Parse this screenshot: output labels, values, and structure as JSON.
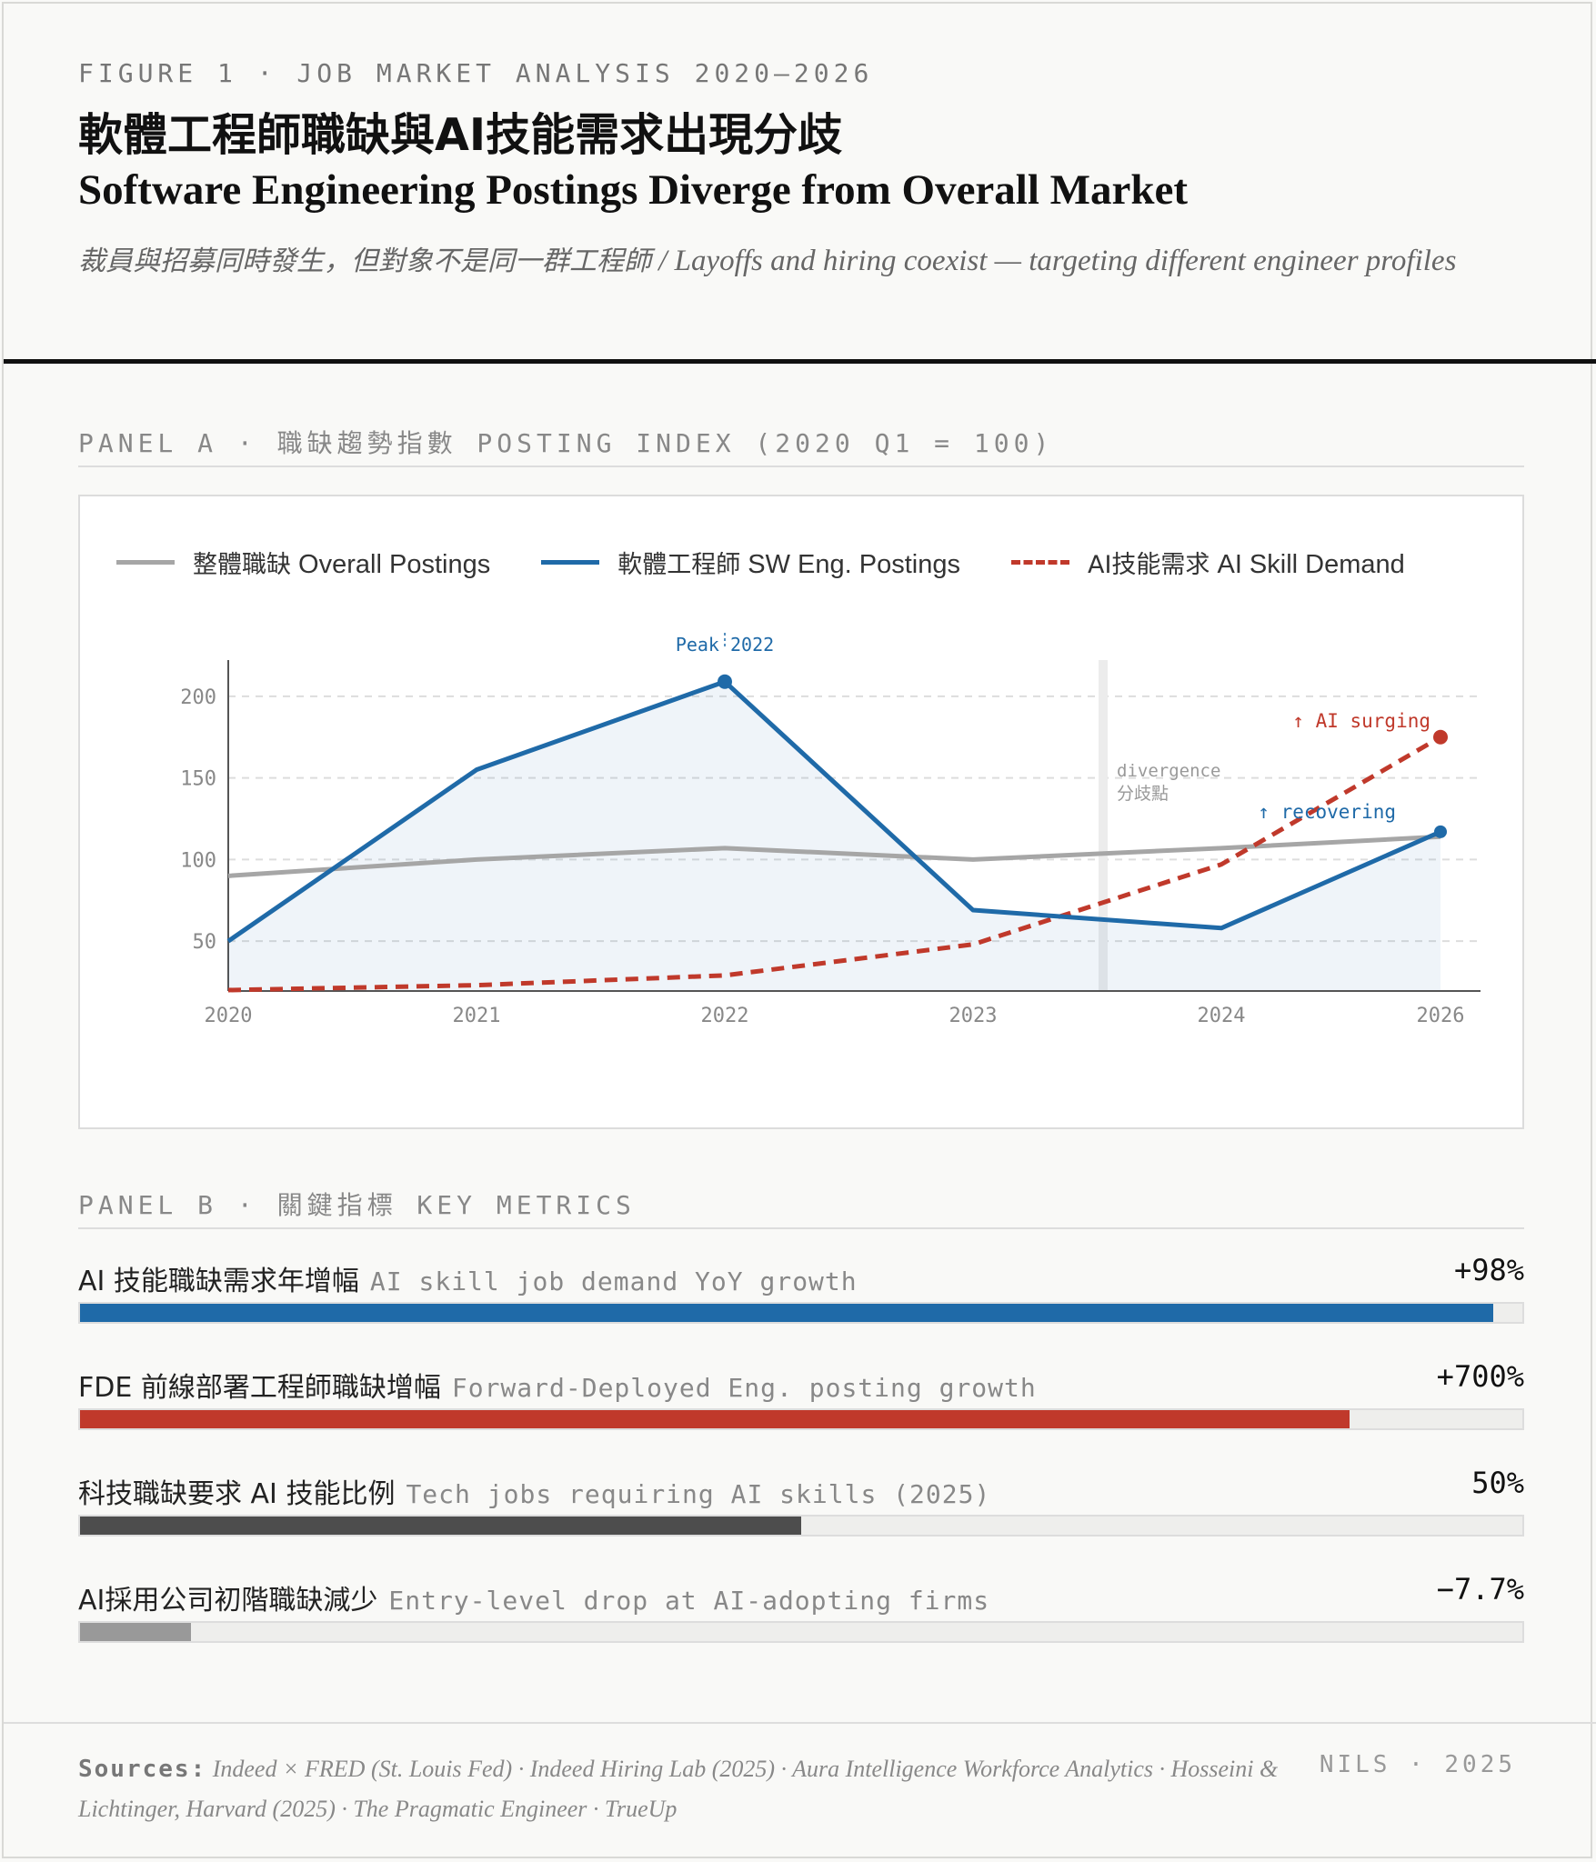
{
  "header": {
    "kicker": "FIGURE 1  ·  JOB MARKET ANALYSIS 2020–2026",
    "title_zh": "軟體工程師職缺與AI技能需求出現分歧",
    "title_en": "Software Engineering Postings Diverge from Overall Market",
    "subtitle_zh": "裁員與招募同時發生，但對象不是同一群工程師",
    "subtitle_en": " / Layoffs and hiring coexist — targeting different engineer profiles"
  },
  "panel_a": {
    "label": "PANEL A  ·  職缺趨勢指數 POSTING INDEX (2020 Q1 = 100)"
  },
  "panel_b": {
    "label": "PANEL B  ·  關鍵指標 KEY METRICS"
  },
  "chart_data": {
    "type": "line",
    "x": [
      "2020",
      "2021",
      "2022",
      "2023",
      "2024",
      "2026"
    ],
    "yticks": [
      50,
      100,
      150,
      200
    ],
    "ylim": [
      20,
      225
    ],
    "grid": true,
    "legend_position": "top",
    "series": [
      {
        "name_zh": "整體職缺",
        "name_en": "Overall Postings",
        "color": "#a6a6a6",
        "style": "solid",
        "values": [
          90,
          100,
          107,
          100,
          107,
          114
        ]
      },
      {
        "name_zh": "軟體工程師",
        "name_en": "SW Eng. Postings",
        "color": "#1f6aa8",
        "style": "solid",
        "area": true,
        "values": [
          50,
          155,
          209,
          69,
          58,
          117
        ]
      },
      {
        "name_zh": "AI技能需求",
        "name_en": "AI Skill Demand",
        "color": "#c0392b",
        "style": "dashed",
        "values": [
          20,
          23,
          29,
          48,
          97,
          175
        ]
      }
    ],
    "annotations": {
      "peak": "Peak 2022",
      "divergence_en": "divergence",
      "divergence_zh": "分歧點",
      "ai": "↑ AI surging",
      "recovering": "↑ recovering"
    }
  },
  "metrics": [
    {
      "zh": "AI 技能職缺需求年增幅",
      "en": "AI skill job demand YoY growth",
      "value": "+98%",
      "fill": 0.98,
      "color": "#1f6aa8"
    },
    {
      "zh": "FDE 前線部署工程師職缺增幅",
      "en": "Forward-Deployed Eng. posting growth",
      "value": "+700%",
      "fill": 0.88,
      "color": "#c0392b"
    },
    {
      "zh": "科技職缺要求 AI 技能比例",
      "en": "Tech jobs requiring AI skills (2025)",
      "value": "50%",
      "fill": 0.5,
      "color": "#4d4d4d"
    },
    {
      "zh": "AI採用公司初階職缺減少",
      "en": "Entry-level drop at AI-adopting firms",
      "value": "−7.7%",
      "fill": 0.077,
      "color": "#999999"
    }
  ],
  "footer": {
    "sources_label": "Sources:",
    "sources_text": " Indeed × FRED (St. Louis Fed) · Indeed Hiring Lab (2025) · Aura Intelligence Workforce Analytics · Hosseini & Lichtinger, Harvard (2025) · The Pragmatic Engineer · TrueUp",
    "credit": "NILS · 2025"
  }
}
